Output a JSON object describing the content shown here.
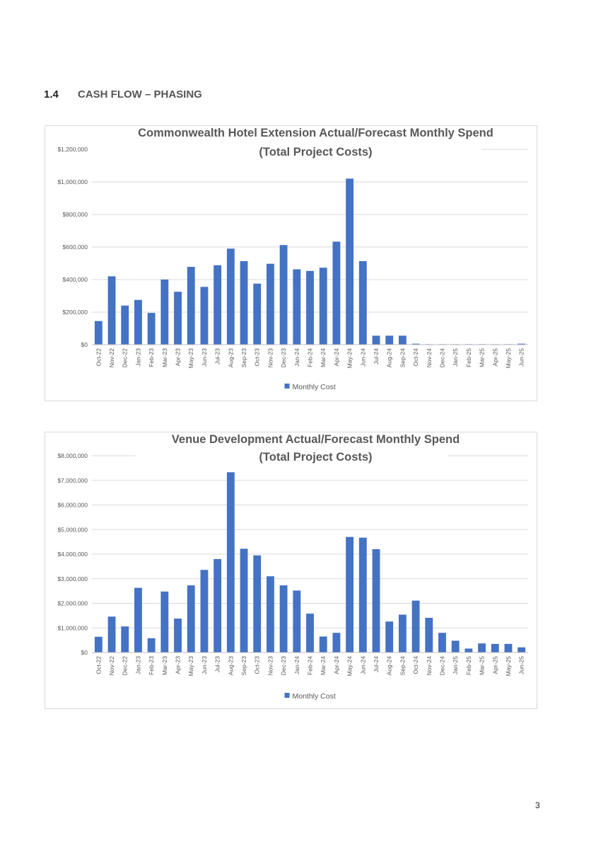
{
  "section": {
    "number": "1.4",
    "title": "CASH FLOW – PHASING"
  },
  "page_number": "3",
  "chart_data": [
    {
      "type": "bar",
      "title_lines": [
        "Commonwealth Hotel Extension Actual/Forecast Monthly Spend",
        "(Total Project Costs)"
      ],
      "categories": [
        "Oct-22",
        "Nov-22",
        "Dec-22",
        "Jan-23",
        "Feb-23",
        "Mar-23",
        "Apr-23",
        "May-23",
        "Jun-23",
        "Jul-23",
        "Aug-23",
        "Sep-23",
        "Oct-23",
        "Nov-23",
        "Dec-23",
        "Jan-24",
        "Feb-24",
        "Mar-24",
        "Apr-24",
        "May-24",
        "Jun-24",
        "Jul-24",
        "Aug-24",
        "Sep-24",
        "Oct-24",
        "Nov-24",
        "Dec-24",
        "Jan-25",
        "Feb-25",
        "Mar-25",
        "Apr-25",
        "May-25",
        "Jun-25"
      ],
      "series": [
        {
          "name": "Monthly Cost",
          "values": [
            145000,
            420000,
            240000,
            275000,
            195000,
            400000,
            325000,
            478000,
            355000,
            488000,
            590000,
            513000,
            375000,
            497000,
            612000,
            463000,
            453000,
            473000,
            633000,
            1020000,
            513000,
            55000,
            55000,
            55000,
            6000,
            3000,
            3000,
            3000,
            3000,
            3000,
            3000,
            3000,
            6000
          ]
        }
      ],
      "ylim": [
        0,
        1200000
      ],
      "yticks": [
        0,
        200000,
        400000,
        600000,
        800000,
        1000000,
        1200000
      ],
      "ytick_labels": [
        "$0",
        "$200,000",
        "$400,000",
        "$600,000",
        "$800,000",
        "$1,000,000",
        "$1,200,000"
      ],
      "grid": true,
      "legend": "bottom",
      "bar_color": "#4472c4"
    },
    {
      "type": "bar",
      "title_lines": [
        "Venue Development Actual/Forecast Monthly Spend",
        "(Total Project Costs)"
      ],
      "categories": [
        "Oct-22",
        "Nov-22",
        "Dec-22",
        "Jan-23",
        "Feb-23",
        "Mar-23",
        "Apr-23",
        "May-23",
        "Jun-23",
        "Jul-23",
        "Aug-23",
        "Sep-23",
        "Oct-23",
        "Nov-23",
        "Dec-23",
        "Jan-24",
        "Feb-24",
        "Mar-24",
        "Apr-24",
        "May-24",
        "Jun-24",
        "Jul-24",
        "Aug-24",
        "Sep-24",
        "Oct-24",
        "Nov-24",
        "Dec-24",
        "Jan-25",
        "Feb-25",
        "Mar-25",
        "Apr-25",
        "May-25",
        "Jun-25"
      ],
      "series": [
        {
          "name": "Monthly Cost",
          "values": [
            640000,
            1460000,
            1060000,
            2630000,
            580000,
            2480000,
            1380000,
            2730000,
            3360000,
            3800000,
            7330000,
            4220000,
            3950000,
            3100000,
            2730000,
            2520000,
            1580000,
            650000,
            800000,
            4700000,
            4670000,
            4200000,
            1260000,
            1540000,
            2110000,
            1410000,
            800000,
            480000,
            160000,
            370000,
            350000,
            350000,
            210000
          ]
        }
      ],
      "ylim": [
        0,
        8000000
      ],
      "yticks": [
        0,
        1000000,
        2000000,
        3000000,
        4000000,
        5000000,
        6000000,
        7000000,
        8000000
      ],
      "ytick_labels": [
        "$0",
        "$1,000,000",
        "$2,000,000",
        "$3,000,000",
        "$4,000,000",
        "$5,000,000",
        "$6,000,000",
        "$7,000,000",
        "$8,000,000"
      ],
      "grid": true,
      "legend": "bottom",
      "bar_color": "#4472c4"
    }
  ]
}
